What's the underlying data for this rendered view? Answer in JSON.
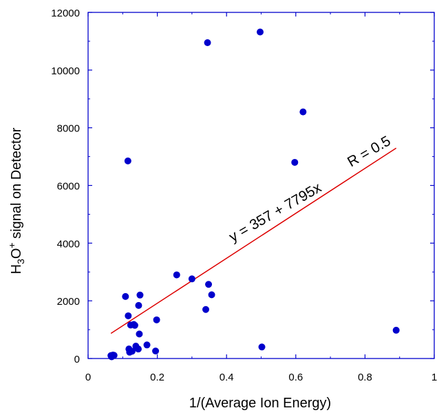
{
  "colors": {
    "axis": "#0000cc",
    "points": "#0000cc",
    "fit_line": "#dd0000",
    "text": "#000000",
    "background": "#ffffff"
  },
  "chart_data": {
    "type": "scatter",
    "title": "",
    "xlabel": "1/(Average Ion Energy)",
    "ylabel": {
      "prefix": "H",
      "sub": "3",
      "mid": "O",
      "sup": "+",
      "suffix": " signal on Detector"
    },
    "xlim": [
      0,
      1
    ],
    "ylim": [
      0,
      12000
    ],
    "x_ticks": [
      0,
      0.2,
      0.4,
      0.6,
      0.8,
      1
    ],
    "x_tick_labels": [
      "0",
      "0.2",
      "0.4",
      "0.6",
      "0.8",
      "1"
    ],
    "y_ticks": [
      0,
      2000,
      4000,
      6000,
      8000,
      10000,
      12000
    ],
    "y_tick_labels": [
      "0",
      "2000",
      "4000",
      "6000",
      "8000",
      "10000",
      "12000"
    ],
    "grid": false,
    "legend": "none",
    "points": [
      {
        "x": 0.066,
        "y": 100
      },
      {
        "x": 0.068,
        "y": 60
      },
      {
        "x": 0.072,
        "y": 120
      },
      {
        "x": 0.075,
        "y": 110
      },
      {
        "x": 0.108,
        "y": 2150
      },
      {
        "x": 0.115,
        "y": 6850
      },
      {
        "x": 0.116,
        "y": 1480
      },
      {
        "x": 0.118,
        "y": 330
      },
      {
        "x": 0.12,
        "y": 220
      },
      {
        "x": 0.123,
        "y": 1160
      },
      {
        "x": 0.127,
        "y": 250
      },
      {
        "x": 0.132,
        "y": 1180
      },
      {
        "x": 0.135,
        "y": 1150
      },
      {
        "x": 0.138,
        "y": 430
      },
      {
        "x": 0.145,
        "y": 330
      },
      {
        "x": 0.146,
        "y": 1840
      },
      {
        "x": 0.148,
        "y": 850
      },
      {
        "x": 0.15,
        "y": 2200
      },
      {
        "x": 0.17,
        "y": 470
      },
      {
        "x": 0.195,
        "y": 260
      },
      {
        "x": 0.198,
        "y": 1340
      },
      {
        "x": 0.256,
        "y": 2900
      },
      {
        "x": 0.3,
        "y": 2760
      },
      {
        "x": 0.34,
        "y": 1700
      },
      {
        "x": 0.345,
        "y": 10950
      },
      {
        "x": 0.348,
        "y": 2570
      },
      {
        "x": 0.357,
        "y": 2210
      },
      {
        "x": 0.497,
        "y": 11320
      },
      {
        "x": 0.502,
        "y": 400
      },
      {
        "x": 0.597,
        "y": 6800
      },
      {
        "x": 0.621,
        "y": 8550
      },
      {
        "x": 0.89,
        "y": 980
      }
    ],
    "fit": {
      "intercept": 357,
      "slope": 7795,
      "x_range": [
        0.066,
        0.89
      ],
      "equation_label": "y = 357 + 7795x",
      "r_label": "R = 0.5"
    }
  }
}
